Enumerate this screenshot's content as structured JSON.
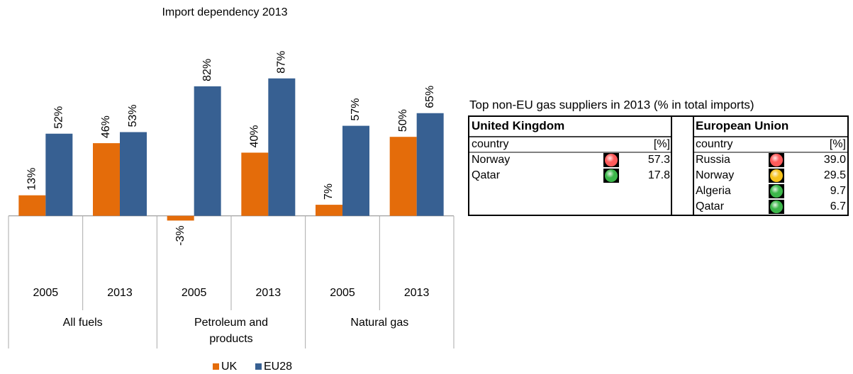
{
  "chart_data": {
    "type": "bar",
    "title": "Import dependency 2013",
    "categories": [
      "2005",
      "2013",
      "2005",
      "2013",
      "2005",
      "2013"
    ],
    "groups": [
      "All fuels",
      "Petroleum and products",
      "Natural gas"
    ],
    "series": [
      {
        "name": "UK",
        "color": "#e46c0a",
        "values": [
          13,
          46,
          -3,
          40,
          7,
          50
        ],
        "value_labels": [
          "13%",
          "46%",
          "-3%",
          "40%",
          "7%",
          "50%"
        ]
      },
      {
        "name": "EU28",
        "color": "#376092",
        "values": [
          52,
          53,
          82,
          87,
          57,
          65
        ],
        "value_labels": [
          "52%",
          "53%",
          "82%",
          "87%",
          "57%",
          "65%"
        ]
      }
    ],
    "ylim": [
      -10,
      90
    ],
    "legend": "bottom"
  },
  "table": {
    "title": "Top non-EU gas suppliers in 2013 (% in total imports)",
    "panels": [
      {
        "name": "United Kingdom",
        "headers": [
          "country",
          "[%]"
        ],
        "rows": [
          {
            "country": "Norway",
            "value": "57.3",
            "color": "#ff5b5b"
          },
          {
            "country": "Qatar",
            "value": "17.8",
            "color": "#3cb64a"
          }
        ]
      },
      {
        "name": "European Union",
        "headers": [
          "country",
          "[%]"
        ],
        "rows": [
          {
            "country": "Russia",
            "value": "39.0",
            "color": "#ff5b5b"
          },
          {
            "country": "Norway",
            "value": "29.5",
            "color": "#f6c21c"
          },
          {
            "country": "Algeria",
            "value": "9.7",
            "color": "#3cb64a"
          },
          {
            "country": "Qatar",
            "value": "6.7",
            "color": "#3cb64a"
          }
        ]
      }
    ]
  }
}
